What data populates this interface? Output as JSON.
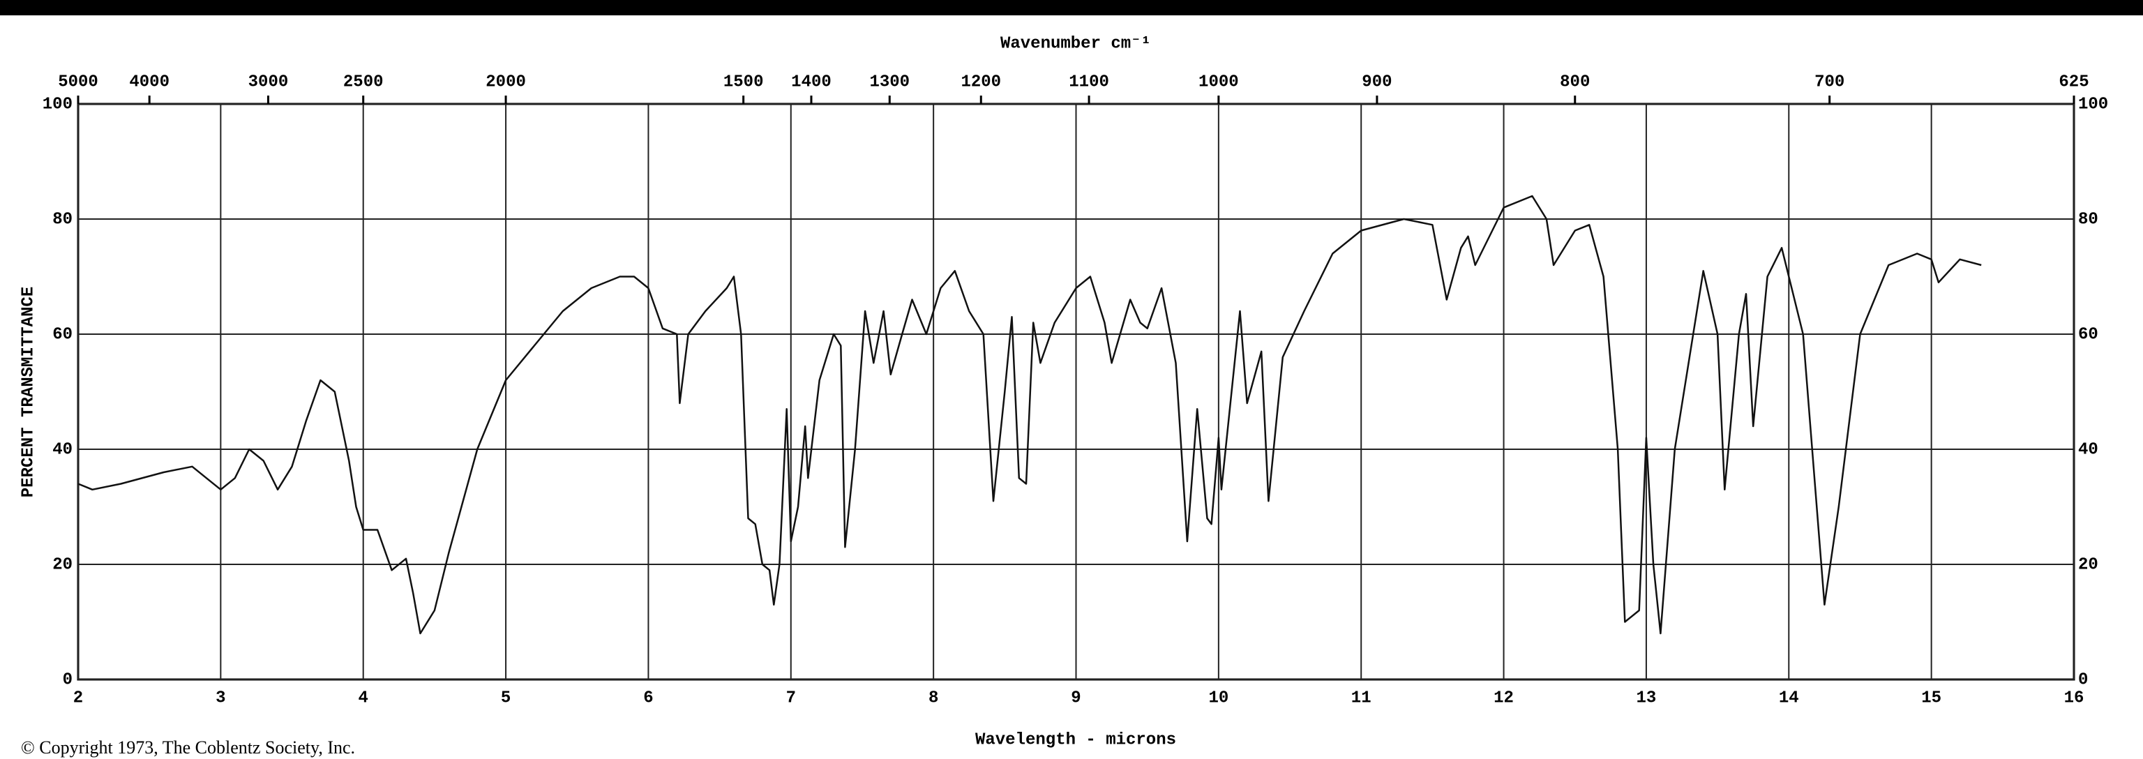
{
  "chart_data": {
    "type": "line",
    "x2label": "Wavenumber cm⁻¹",
    "xlabel": "Wavelength - microns",
    "ylabel": "PERCENT TRANSMITTANCE",
    "copyright": "© Copyright 1973, The Coblentz Society, Inc.",
    "color": "#111111",
    "grid": true,
    "xlim": [
      2,
      16
    ],
    "xticks": [
      2,
      3,
      4,
      5,
      6,
      7,
      8,
      9,
      10,
      11,
      12,
      13,
      14,
      15,
      16
    ],
    "ylim": [
      0,
      100
    ],
    "yticks": [
      0,
      20,
      40,
      60,
      80,
      100
    ],
    "x2scale": "reciprocal",
    "x2lim": [
      5000,
      625
    ],
    "x2ticks": [
      5000,
      4000,
      3000,
      2500,
      2000,
      1500,
      1400,
      1300,
      1200,
      1100,
      1000,
      900,
      800,
      700,
      625
    ],
    "x": [
      2.0,
      2.1,
      2.3,
      2.6,
      2.8,
      2.9,
      3.0,
      3.1,
      3.2,
      3.3,
      3.4,
      3.5,
      3.6,
      3.7,
      3.8,
      3.9,
      3.95,
      4.0,
      4.1,
      4.2,
      4.3,
      4.35,
      4.4,
      4.5,
      4.6,
      4.8,
      5.0,
      5.2,
      5.4,
      5.6,
      5.8,
      5.9,
      6.0,
      6.1,
      6.2,
      6.22,
      6.28,
      6.4,
      6.55,
      6.6,
      6.65,
      6.7,
      6.75,
      6.8,
      6.85,
      6.88,
      6.92,
      6.97,
      7.0,
      7.05,
      7.1,
      7.12,
      7.2,
      7.3,
      7.35,
      7.38,
      7.45,
      7.52,
      7.58,
      7.65,
      7.7,
      7.78,
      7.85,
      7.95,
      8.05,
      8.15,
      8.25,
      8.35,
      8.42,
      8.5,
      8.55,
      8.6,
      8.65,
      8.7,
      8.75,
      8.85,
      9.0,
      9.1,
      9.2,
      9.25,
      9.38,
      9.45,
      9.5,
      9.6,
      9.7,
      9.78,
      9.85,
      9.92,
      9.95,
      10.0,
      10.02,
      10.15,
      10.2,
      10.3,
      10.35,
      10.45,
      10.6,
      10.8,
      11.0,
      11.3,
      11.5,
      11.6,
      11.7,
      11.75,
      11.8,
      12.0,
      12.2,
      12.3,
      12.35,
      12.5,
      12.6,
      12.7,
      12.8,
      12.85,
      12.95,
      13.0,
      13.05,
      13.1,
      13.2,
      13.4,
      13.5,
      13.55,
      13.65,
      13.7,
      13.75,
      13.85,
      13.95,
      14.1,
      14.25,
      14.35,
      14.5,
      14.7,
      14.9,
      15.0,
      15.05,
      15.2,
      15.35
    ],
    "values": [
      34,
      33,
      34,
      36,
      37,
      35,
      33,
      35,
      40,
      38,
      33,
      37,
      45,
      52,
      50,
      38,
      30,
      26,
      26,
      19,
      21,
      15,
      8,
      12,
      22,
      40,
      52,
      58,
      64,
      68,
      70,
      70,
      68,
      61,
      60,
      48,
      60,
      64,
      68,
      70,
      60,
      28,
      27,
      20,
      19,
      13,
      20,
      47,
      24,
      30,
      44,
      35,
      52,
      60,
      58,
      23,
      40,
      64,
      55,
      64,
      53,
      60,
      66,
      60,
      68,
      71,
      64,
      60,
      31,
      50,
      63,
      35,
      34,
      62,
      55,
      62,
      68,
      70,
      62,
      55,
      66,
      62,
      61,
      68,
      55,
      24,
      47,
      28,
      27,
      42,
      33,
      64,
      48,
      57,
      31,
      56,
      64,
      74,
      78,
      80,
      79,
      66,
      75,
      77,
      72,
      82,
      84,
      80,
      72,
      78,
      79,
      70,
      40,
      10,
      12,
      42,
      20,
      8,
      40,
      71,
      60,
      33,
      60,
      67,
      44,
      70,
      75,
      60,
      13,
      30,
      60,
      72,
      74,
      73,
      69,
      73,
      72
    ]
  }
}
